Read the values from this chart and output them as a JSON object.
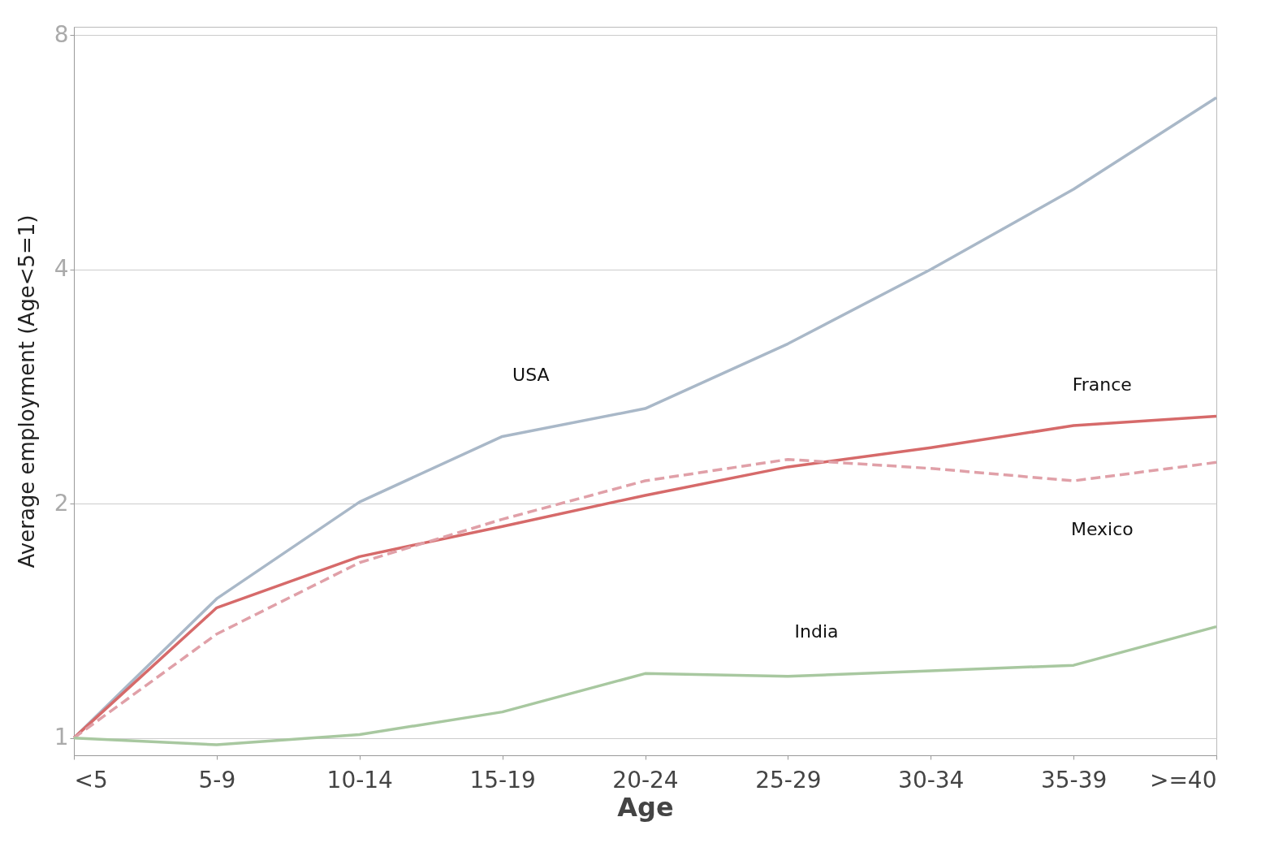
{
  "chart_data": {
    "type": "line",
    "xlabel": "Age",
    "ylabel": "Average employment (Age<5=1)",
    "categories": [
      "<5",
      "5-9",
      "10-14",
      "15-19",
      "20-24",
      "25-29",
      "30-34",
      "35-39",
      ">=40"
    ],
    "series": [
      {
        "name": "USA",
        "color": "#a9b8c8",
        "line_style": "solid",
        "values": [
          1,
          1.51,
          2.01,
          2.44,
          2.65,
          3.21,
          4.0,
          5.07,
          6.65
        ]
      },
      {
        "name": "France",
        "color": "#d66a6a",
        "line_style": "solid",
        "values": [
          1,
          1.47,
          1.71,
          1.87,
          2.05,
          2.23,
          2.36,
          2.52,
          2.59
        ]
      },
      {
        "name": "Mexico",
        "color": "#e0a0a8",
        "line_style": "dashed",
        "values": [
          1,
          1.36,
          1.68,
          1.91,
          2.14,
          2.28,
          2.22,
          2.14,
          2.26
        ]
      },
      {
        "name": "India",
        "color": "#a8c8a0",
        "line_style": "solid",
        "values": [
          1,
          0.98,
          1.01,
          1.08,
          1.21,
          1.2,
          1.22,
          1.24,
          1.39
        ]
      }
    ],
    "log": "y",
    "ylim": [
      0.95,
      8.2
    ],
    "yticks": [
      1,
      2,
      4,
      8
    ],
    "grid": "y",
    "legend": false,
    "marker": "none"
  }
}
